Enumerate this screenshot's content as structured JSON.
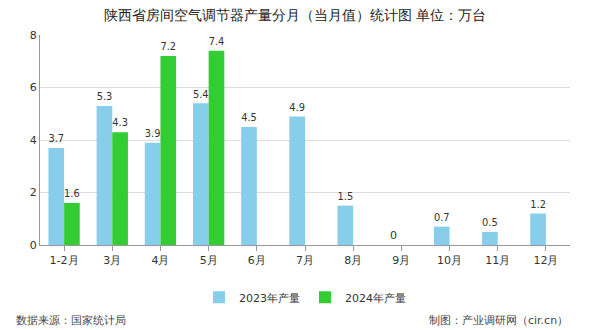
{
  "chart_data": {
    "type": "bar",
    "title": "陕西省房间空气调节器产量分月（当月值）统计图 单位：万台",
    "categories": [
      "1-2月",
      "3月",
      "4月",
      "5月",
      "6月",
      "7月",
      "8月",
      "9月",
      "10月",
      "11月",
      "12月"
    ],
    "series": [
      {
        "name": "2023年产量",
        "color": "#87ceeb",
        "values": [
          3.7,
          5.3,
          3.9,
          5.4,
          4.5,
          4.9,
          1.5,
          0,
          0.7,
          0.5,
          1.2
        ]
      },
      {
        "name": "2024年产量",
        "color": "#33cc33",
        "values": [
          1.6,
          4.3,
          7.2,
          7.4,
          null,
          null,
          null,
          null,
          null,
          null,
          null
        ]
      }
    ],
    "ylim": [
      0,
      8
    ],
    "yticks": [
      0,
      2,
      4,
      6,
      8
    ],
    "grid": true,
    "legend": "bottom",
    "data_labels": true,
    "annotations": [
      "数据来源：国家统计局",
      "制图：产业调研网（cir.cn）"
    ]
  }
}
